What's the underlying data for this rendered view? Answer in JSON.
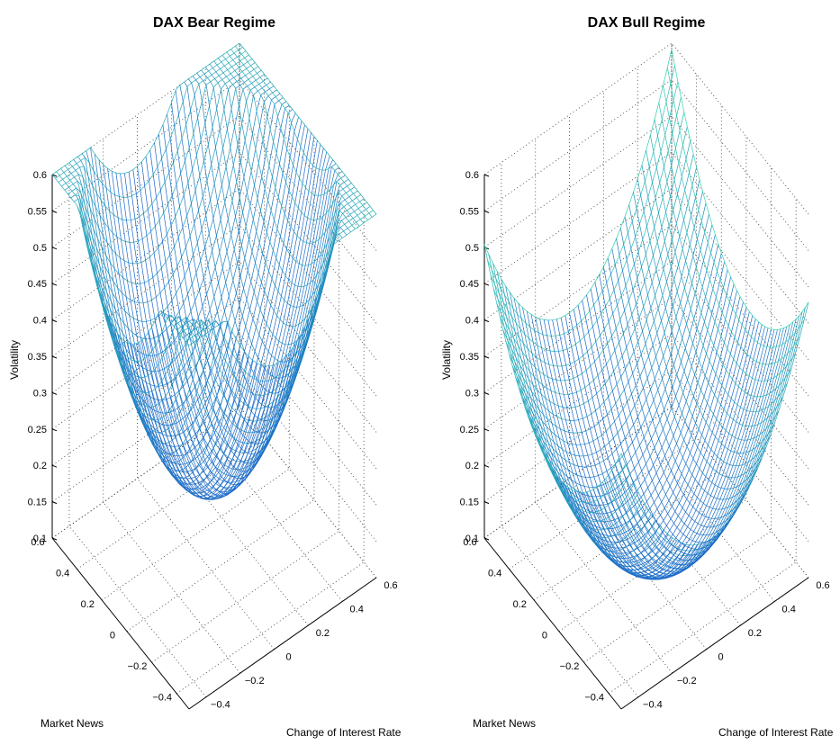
{
  "chart_data": [
    {
      "type": "surface",
      "title": "DAX Bear Regime",
      "xlabel": "Market News",
      "ylabel": "Change of Interest Rate",
      "zlabel": "Volatility",
      "x_ticks": [
        "−0.4",
        "−0.2",
        "0",
        "0.2",
        "0.4",
        "0.6"
      ],
      "y_ticks": [
        "−0.4",
        "−0.2",
        "0",
        "0.2",
        "0.4",
        "0.6"
      ],
      "z_ticks": [
        "0.1",
        "0.15",
        "0.2",
        "0.25",
        "0.3",
        "0.35",
        "0.4",
        "0.45",
        "0.5",
        "0.55",
        "0.6"
      ],
      "xlim": [
        -0.5,
        0.6
      ],
      "ylim": [
        -0.5,
        0.6
      ],
      "zlim": [
        0.1,
        0.6
      ],
      "grid": true,
      "colormap": "blue-to-green by height",
      "surface": {
        "x_range": [
          -0.5,
          0.6
        ],
        "y_range": [
          -0.5,
          0.6
        ],
        "z_at_x_min_y_min": 0.37,
        "z_at_x_max_y_min": 0.5,
        "z_at_x_min_y_max": 0.55,
        "z_minimum": 0.21,
        "x_at_minimum": 0.05,
        "y_at_minimum": 0.05,
        "x_curvature": 1.0,
        "y_curvature": 1.12,
        "x_slope": 0.04,
        "y_slope": 0.1,
        "cross_term": 0.11,
        "rear_fold_y_from": 0.0,
        "rear_fold_z_offset": 0.04
      }
    },
    {
      "type": "surface",
      "title": "DAX Bull Regime",
      "xlabel": "Market News",
      "ylabel": "Change of Interest Rate",
      "zlabel": "Volatility",
      "x_ticks": [
        "−0.4",
        "−0.2",
        "0",
        "0.2",
        "0.4",
        "0.6"
      ],
      "y_ticks": [
        "−0.4",
        "−0.2",
        "0",
        "0.2",
        "0.4",
        "0.6"
      ],
      "z_ticks": [
        "0.1",
        "0.15",
        "0.2",
        "0.25",
        "0.3",
        "0.35",
        "0.4",
        "0.45",
        "0.5",
        "0.55",
        "0.6"
      ],
      "xlim": [
        -0.5,
        0.6
      ],
      "ylim": [
        -0.5,
        0.6
      ],
      "zlim": [
        0.1,
        0.6
      ],
      "grid": true,
      "colormap": "blue-to-green by height",
      "surface": {
        "x_range": [
          -0.5,
          0.6
        ],
        "y_range": [
          -0.5,
          0.6
        ],
        "z_at_x_min_y_min": 0.27,
        "z_at_x_max_y_min": 0.38,
        "z_at_x_min_y_max": 0.43,
        "z_minimum": 0.12,
        "x_at_minimum": 0.0,
        "y_at_minimum": 0.05,
        "x_curvature": 0.55,
        "y_curvature": 0.72,
        "x_slope": 0.02,
        "y_slope": 0.05,
        "cross_term": 0.05,
        "rear_fold_y_from": 0.1,
        "rear_fold_z_offset": 0.02
      }
    }
  ]
}
